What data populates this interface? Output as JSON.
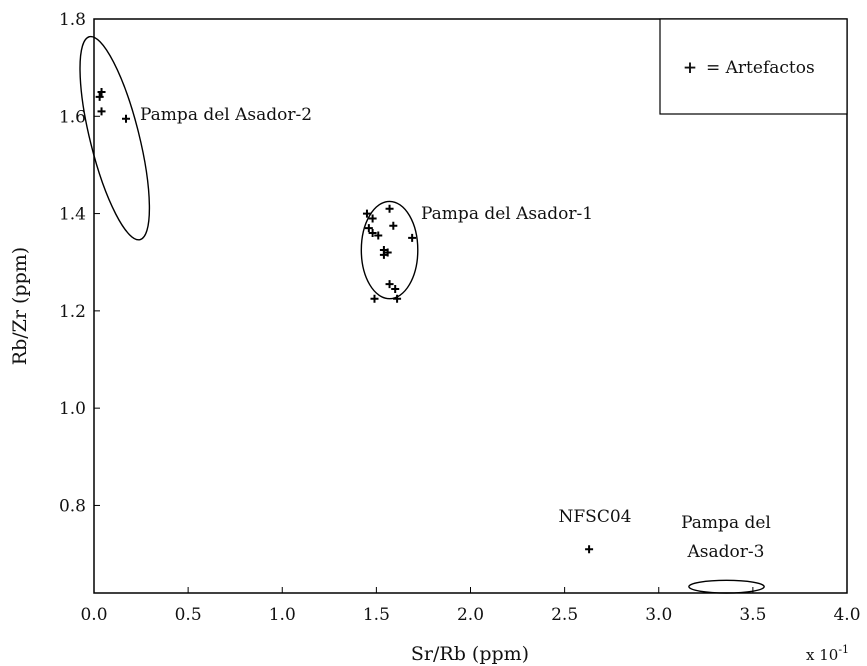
{
  "chart_data": {
    "type": "scatter",
    "xlabel": "Sr/Rb (ppm)",
    "ylabel": "Rb/Zr (ppm)",
    "x_multiplier": {
      "base": "x 10",
      "exponent": "-1"
    },
    "xlim": [
      0.0,
      4.0
    ],
    "ylim": [
      0.62,
      1.8
    ],
    "x_ticks": [
      "0.0",
      "0.5",
      "1.0",
      "1.5",
      "2.0",
      "2.5",
      "3.0",
      "3.5",
      "4.0"
    ],
    "y_ticks": [
      "0.8",
      "1.0",
      "1.2",
      "1.4",
      "1.6",
      "1.8"
    ],
    "legend": {
      "marker": "+",
      "label": "= Artefactos",
      "position": "top-right"
    },
    "series": [
      {
        "name": "Artefactos",
        "marker": "+",
        "points": [
          {
            "x": 0.03,
            "y": 1.64
          },
          {
            "x": 0.04,
            "y": 1.65
          },
          {
            "x": 0.04,
            "y": 1.61
          },
          {
            "x": 0.17,
            "y": 1.595
          },
          {
            "x": 1.45,
            "y": 1.4
          },
          {
            "x": 1.48,
            "y": 1.39
          },
          {
            "x": 1.46,
            "y": 1.37
          },
          {
            "x": 1.48,
            "y": 1.36
          },
          {
            "x": 1.51,
            "y": 1.355
          },
          {
            "x": 1.54,
            "y": 1.325
          },
          {
            "x": 1.56,
            "y": 1.32
          },
          {
            "x": 1.54,
            "y": 1.315
          },
          {
            "x": 1.57,
            "y": 1.41
          },
          {
            "x": 1.59,
            "y": 1.375
          },
          {
            "x": 1.69,
            "y": 1.35
          },
          {
            "x": 1.57,
            "y": 1.255
          },
          {
            "x": 1.6,
            "y": 1.245
          },
          {
            "x": 1.49,
            "y": 1.225
          },
          {
            "x": 1.61,
            "y": 1.225
          },
          {
            "x": 2.63,
            "y": 0.71
          }
        ]
      }
    ],
    "regions": [
      {
        "label": "Pampa del Asador-2",
        "cx": 0.11,
        "cy": 1.555,
        "rx": 0.13,
        "ry": 0.215,
        "angle_deg": -14
      },
      {
        "label": "Pampa del Asador-1",
        "cx": 1.57,
        "cy": 1.325,
        "rx": 0.15,
        "ry": 0.1
      },
      {
        "label": "Pampa del Asador-3",
        "cx": 3.36,
        "cy": 0.633,
        "rx": 0.2,
        "ry": 0.013
      }
    ],
    "annotations": [
      {
        "text": "Pampa del Asador-2"
      },
      {
        "text": "Pampa del Asador-1"
      },
      {
        "text": "NFSC04"
      },
      {
        "text": "Pampa del"
      },
      {
        "text": "Asador-3"
      }
    ]
  }
}
